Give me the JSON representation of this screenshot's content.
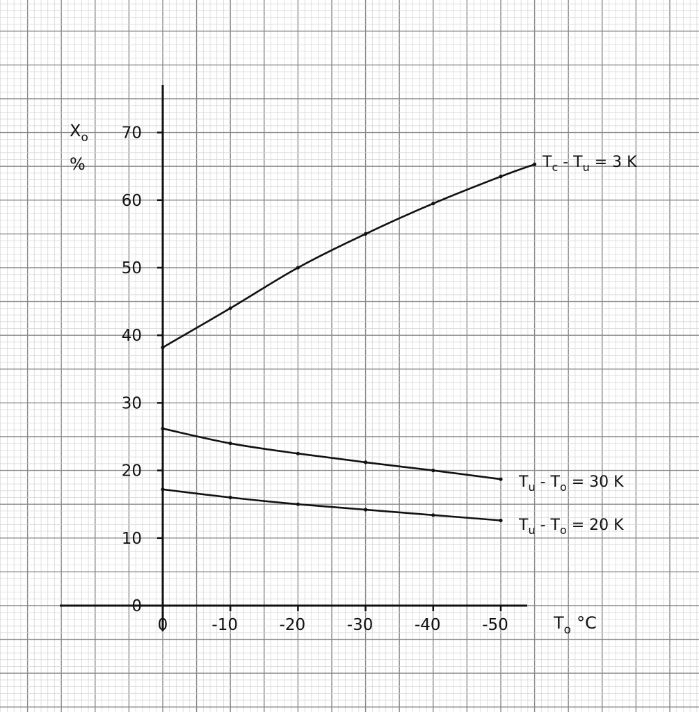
{
  "chart_data": {
    "type": "line",
    "title": "",
    "xlabel": "T",
    "xlabel_sub": "o",
    "xlabel_unit": "°C",
    "ylabel": "X",
    "ylabel_sub": "o",
    "ylabel_unit": "%",
    "xlim": [
      0,
      -57
    ],
    "ylim": [
      0,
      76
    ],
    "x_ticks": [
      0,
      -10,
      -20,
      -30,
      -40,
      -50
    ],
    "x_tick_labels": [
      "0",
      "-10",
      "-20",
      "-30",
      "-40",
      "-50"
    ],
    "y_ticks": [
      0,
      10,
      20,
      30,
      40,
      50,
      60,
      70
    ],
    "y_tick_labels": [
      "0",
      "10",
      "20",
      "30",
      "40",
      "50",
      "60",
      "70"
    ],
    "grid": true,
    "colors": {
      "grid_fine": "#d3d3d3",
      "grid_major": "#8a8a8a",
      "ink": "#111111"
    },
    "series": [
      {
        "name": "T_c - T_u = 3 K",
        "label_parts": [
          "T",
          "c",
          " - T",
          "u",
          " = 3 K"
        ],
        "x": [
          0,
          -10,
          -20,
          -30,
          -40,
          -50,
          -55
        ],
        "y": [
          38.2,
          44.0,
          50.0,
          55.0,
          59.5,
          63.5,
          65.3
        ]
      },
      {
        "name": "T_u - T_o = 30 K",
        "label_parts": [
          "T",
          "u",
          " - T",
          "o",
          " = 30 K"
        ],
        "x": [
          0,
          -10,
          -20,
          -30,
          -40,
          -50
        ],
        "y": [
          26.2,
          24.0,
          22.5,
          21.2,
          20.0,
          18.7
        ]
      },
      {
        "name": "T_u - T_o = 20 K",
        "label_parts": [
          "T",
          "u",
          " - T",
          "o",
          " = 20 K"
        ],
        "x": [
          0,
          -10,
          -20,
          -30,
          -40,
          -50
        ],
        "y": [
          17.2,
          16.0,
          15.0,
          14.2,
          13.4,
          12.6
        ]
      }
    ]
  }
}
